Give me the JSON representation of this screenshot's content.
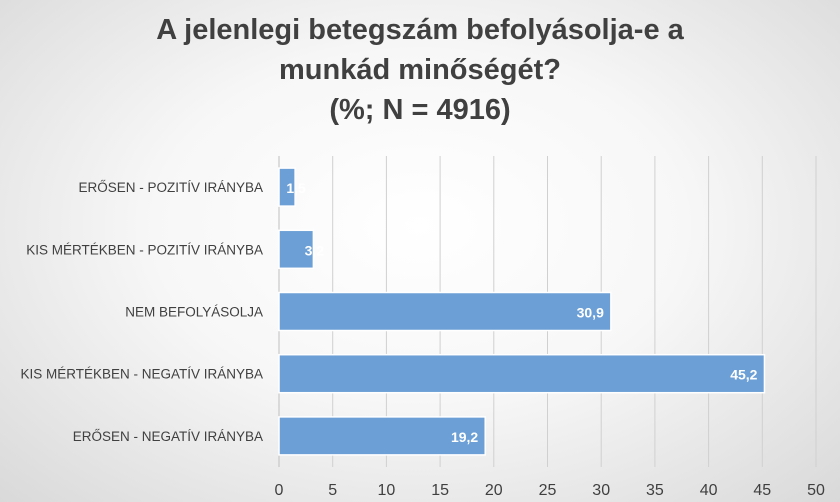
{
  "chart_data": {
    "type": "bar",
    "orientation": "horizontal",
    "title_lines": [
      "A jelenlegi betegszám befolyásolja-e a",
      "munkád minőségét?",
      "(%; N = 4916)"
    ],
    "categories": [
      "ERŐSEN - POZITÍV IRÁNYBA",
      "KIS MÉRTÉKBEN - POZITÍV IRÁNYBA",
      "NEM BEFOLYÁSOLJA",
      "KIS MÉRTÉKBEN - NEGATÍV IRÁNYBA",
      "ERŐSEN - NEGATÍV IRÁNYBA"
    ],
    "values": [
      1.5,
      3.2,
      30.9,
      45.2,
      19.2
    ],
    "data_labels": [
      "1,5",
      "3,2",
      "30,9",
      "45,2",
      "19,2"
    ],
    "xlim": [
      0,
      50
    ],
    "xticks": [
      0,
      5,
      10,
      15,
      20,
      25,
      30,
      35,
      40,
      45,
      50
    ],
    "grid": "vertical",
    "legend": "none",
    "bar_color": "#6b9fd6",
    "bar_border_color": "#ffffff",
    "label_color": "#ffffff",
    "text_color": "#404040",
    "grid_color": "#d0d0d0"
  }
}
